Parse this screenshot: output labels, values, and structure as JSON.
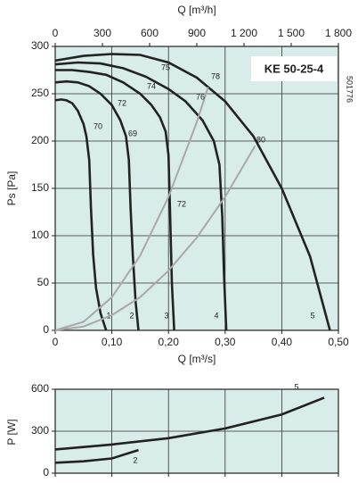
{
  "chart_data": [
    {
      "type": "line",
      "title": "KE 50-25-4",
      "side_note": "501776",
      "x_label": "Q [m³/s]",
      "x2_label": "Q [m³/h]",
      "y_label": "Ps [Pa]",
      "xlim": [
        0,
        0.5
      ],
      "xticks": [
        0,
        {
          "value": 0.1,
          "label": "0,10"
        },
        {
          "value": 0.2,
          "label": "0,20"
        },
        {
          "value": 0.3,
          "label": "0,30"
        },
        {
          "value": 0.4,
          "label": "0,40"
        },
        {
          "value": 0.5,
          "label": "0,50"
        }
      ],
      "x2lim": [
        0,
        1800
      ],
      "x2ticks": [
        0,
        300,
        600,
        900,
        {
          "value": 1200,
          "label": "1 200"
        },
        {
          "value": 1500,
          "label": "1 500"
        },
        {
          "value": 1800,
          "label": "1 800"
        }
      ],
      "ylim": [
        0,
        300
      ],
      "yticks": [
        0,
        50,
        100,
        150,
        200,
        250,
        300
      ],
      "grid": true,
      "series": [
        {
          "name": "1",
          "color": "#222222",
          "x": [
            0,
            0.01,
            0.02,
            0.03,
            0.04,
            0.05,
            0.055,
            0.06,
            0.063,
            0.067,
            0.072,
            0.08,
            0.09
          ],
          "values": [
            243,
            244,
            243,
            240,
            232,
            218,
            205,
            180,
            130,
            80,
            45,
            18,
            0
          ]
        },
        {
          "name": "2",
          "color": "#222222",
          "x": [
            0,
            0.02,
            0.04,
            0.06,
            0.08,
            0.1,
            0.115,
            0.125,
            0.13,
            0.133,
            0.137,
            0.142,
            0.147
          ],
          "values": [
            262,
            263,
            262,
            258,
            250,
            238,
            222,
            205,
            180,
            130,
            80,
            30,
            0
          ]
        },
        {
          "name": "3",
          "color": "#222222",
          "x": [
            0,
            0.03,
            0.06,
            0.09,
            0.12,
            0.15,
            0.17,
            0.185,
            0.195,
            0.2,
            0.203,
            0.206,
            0.21
          ],
          "values": [
            275,
            275,
            273,
            270,
            262,
            250,
            238,
            225,
            210,
            185,
            120,
            50,
            0
          ]
        },
        {
          "name": "4",
          "color": "#222222",
          "x": [
            0,
            0.04,
            0.08,
            0.12,
            0.16,
            0.2,
            0.23,
            0.26,
            0.28,
            0.29,
            0.295,
            0.298,
            0.302
          ],
          "values": [
            281,
            283,
            282,
            277,
            268,
            255,
            242,
            222,
            200,
            175,
            120,
            60,
            0
          ]
        },
        {
          "name": "5",
          "color": "#222222",
          "x": [
            0,
            0.05,
            0.1,
            0.15,
            0.2,
            0.25,
            0.3,
            0.35,
            0.4,
            0.45,
            0.485
          ],
          "values": [
            285,
            290,
            292,
            291,
            283,
            267,
            242,
            205,
            150,
            78,
            0
          ]
        },
        {
          "color": "#a8a8a8",
          "x": [
            0,
            0.05,
            0.1,
            0.15,
            0.2,
            0.25,
            0.27
          ],
          "values": [
            0,
            9,
            35,
            79,
            141,
            220,
            257
          ]
        },
        {
          "color": "#a8a8a8",
          "x": [
            0,
            0.05,
            0.1,
            0.15,
            0.2,
            0.25,
            0.3,
            0.353
          ],
          "values": [
            0,
            4,
            16,
            35,
            63,
            98,
            141,
            195
          ]
        }
      ],
      "annotations": [
        "70",
        "72",
        "74",
        "75",
        "76",
        "78",
        "80",
        "69",
        "72"
      ]
    },
    {
      "type": "line",
      "y_label": "P [W]",
      "xlim": [
        0,
        0.5
      ],
      "xticks": [
        0,
        0.1,
        0.2,
        0.3,
        0.4,
        0.5
      ],
      "ylim": [
        0,
        600
      ],
      "yticks": [
        0,
        300,
        600
      ],
      "grid": true,
      "series": [
        {
          "name": "5",
          "color": "#222222",
          "x": [
            0,
            0.1,
            0.2,
            0.3,
            0.4,
            0.475
          ],
          "values": [
            170,
            205,
            250,
            320,
            420,
            540
          ]
        },
        {
          "name": "2",
          "color": "#222222",
          "x": [
            0,
            0.05,
            0.1,
            0.147
          ],
          "values": [
            75,
            85,
            105,
            165
          ]
        }
      ]
    }
  ]
}
